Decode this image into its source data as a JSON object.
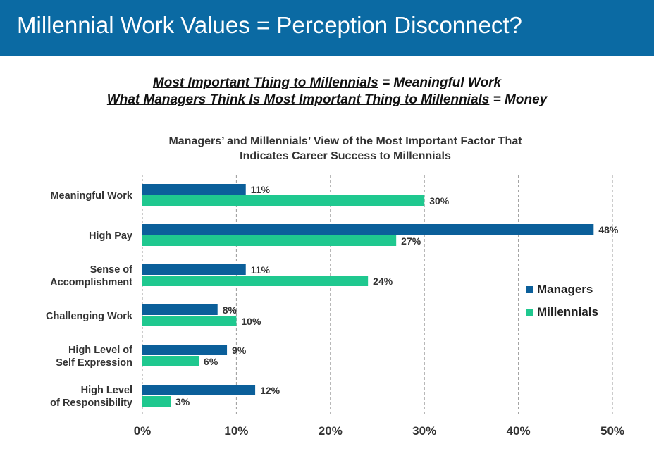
{
  "banner": {
    "title": "Millennial Work Values = Perception Disconnect?"
  },
  "headlines": [
    {
      "underlined": "Most Important Thing to Millennials",
      "rest": " = Meaningful Work"
    },
    {
      "underlined": "What Managers Think Is Most Important Thing to Millennials",
      "rest": " = Money"
    }
  ],
  "colors": {
    "banner": "#0b6aa3",
    "managers": "#0b5f9a",
    "millennials": "#1fc88f"
  },
  "chart_data": {
    "type": "bar",
    "orientation": "horizontal",
    "title_lines": [
      "Managers’ and Millennials’ View of the Most Important Factor That",
      "Indicates Career Success to Millennials"
    ],
    "categories": [
      [
        "Meaningful Work"
      ],
      [
        "High Pay"
      ],
      [
        "Sense of",
        "Accomplishment"
      ],
      [
        "Challenging Work"
      ],
      [
        "High Level of",
        "Self Expression"
      ],
      [
        "High Level",
        "of Responsibility"
      ]
    ],
    "series": [
      {
        "name": "Managers",
        "values": [
          11,
          48,
          11,
          8,
          9,
          12
        ],
        "color": "#0b5f9a"
      },
      {
        "name": "Millennials",
        "values": [
          30,
          27,
          24,
          10,
          6,
          3
        ],
        "color": "#1fc88f"
      }
    ],
    "value_labels": [
      [
        "11%",
        "48%",
        "11%",
        "8%",
        "9%",
        "12%"
      ],
      [
        "30%",
        "27%",
        "24%",
        "10%",
        "6%",
        "3%"
      ]
    ],
    "xlim": [
      0,
      50
    ],
    "xticks": [
      0,
      10,
      20,
      30,
      40,
      50
    ],
    "xtick_labels": [
      "0%",
      "10%",
      "20%",
      "30%",
      "40%",
      "50%"
    ],
    "grid": "vertical-dashed",
    "legend_position": "right"
  }
}
